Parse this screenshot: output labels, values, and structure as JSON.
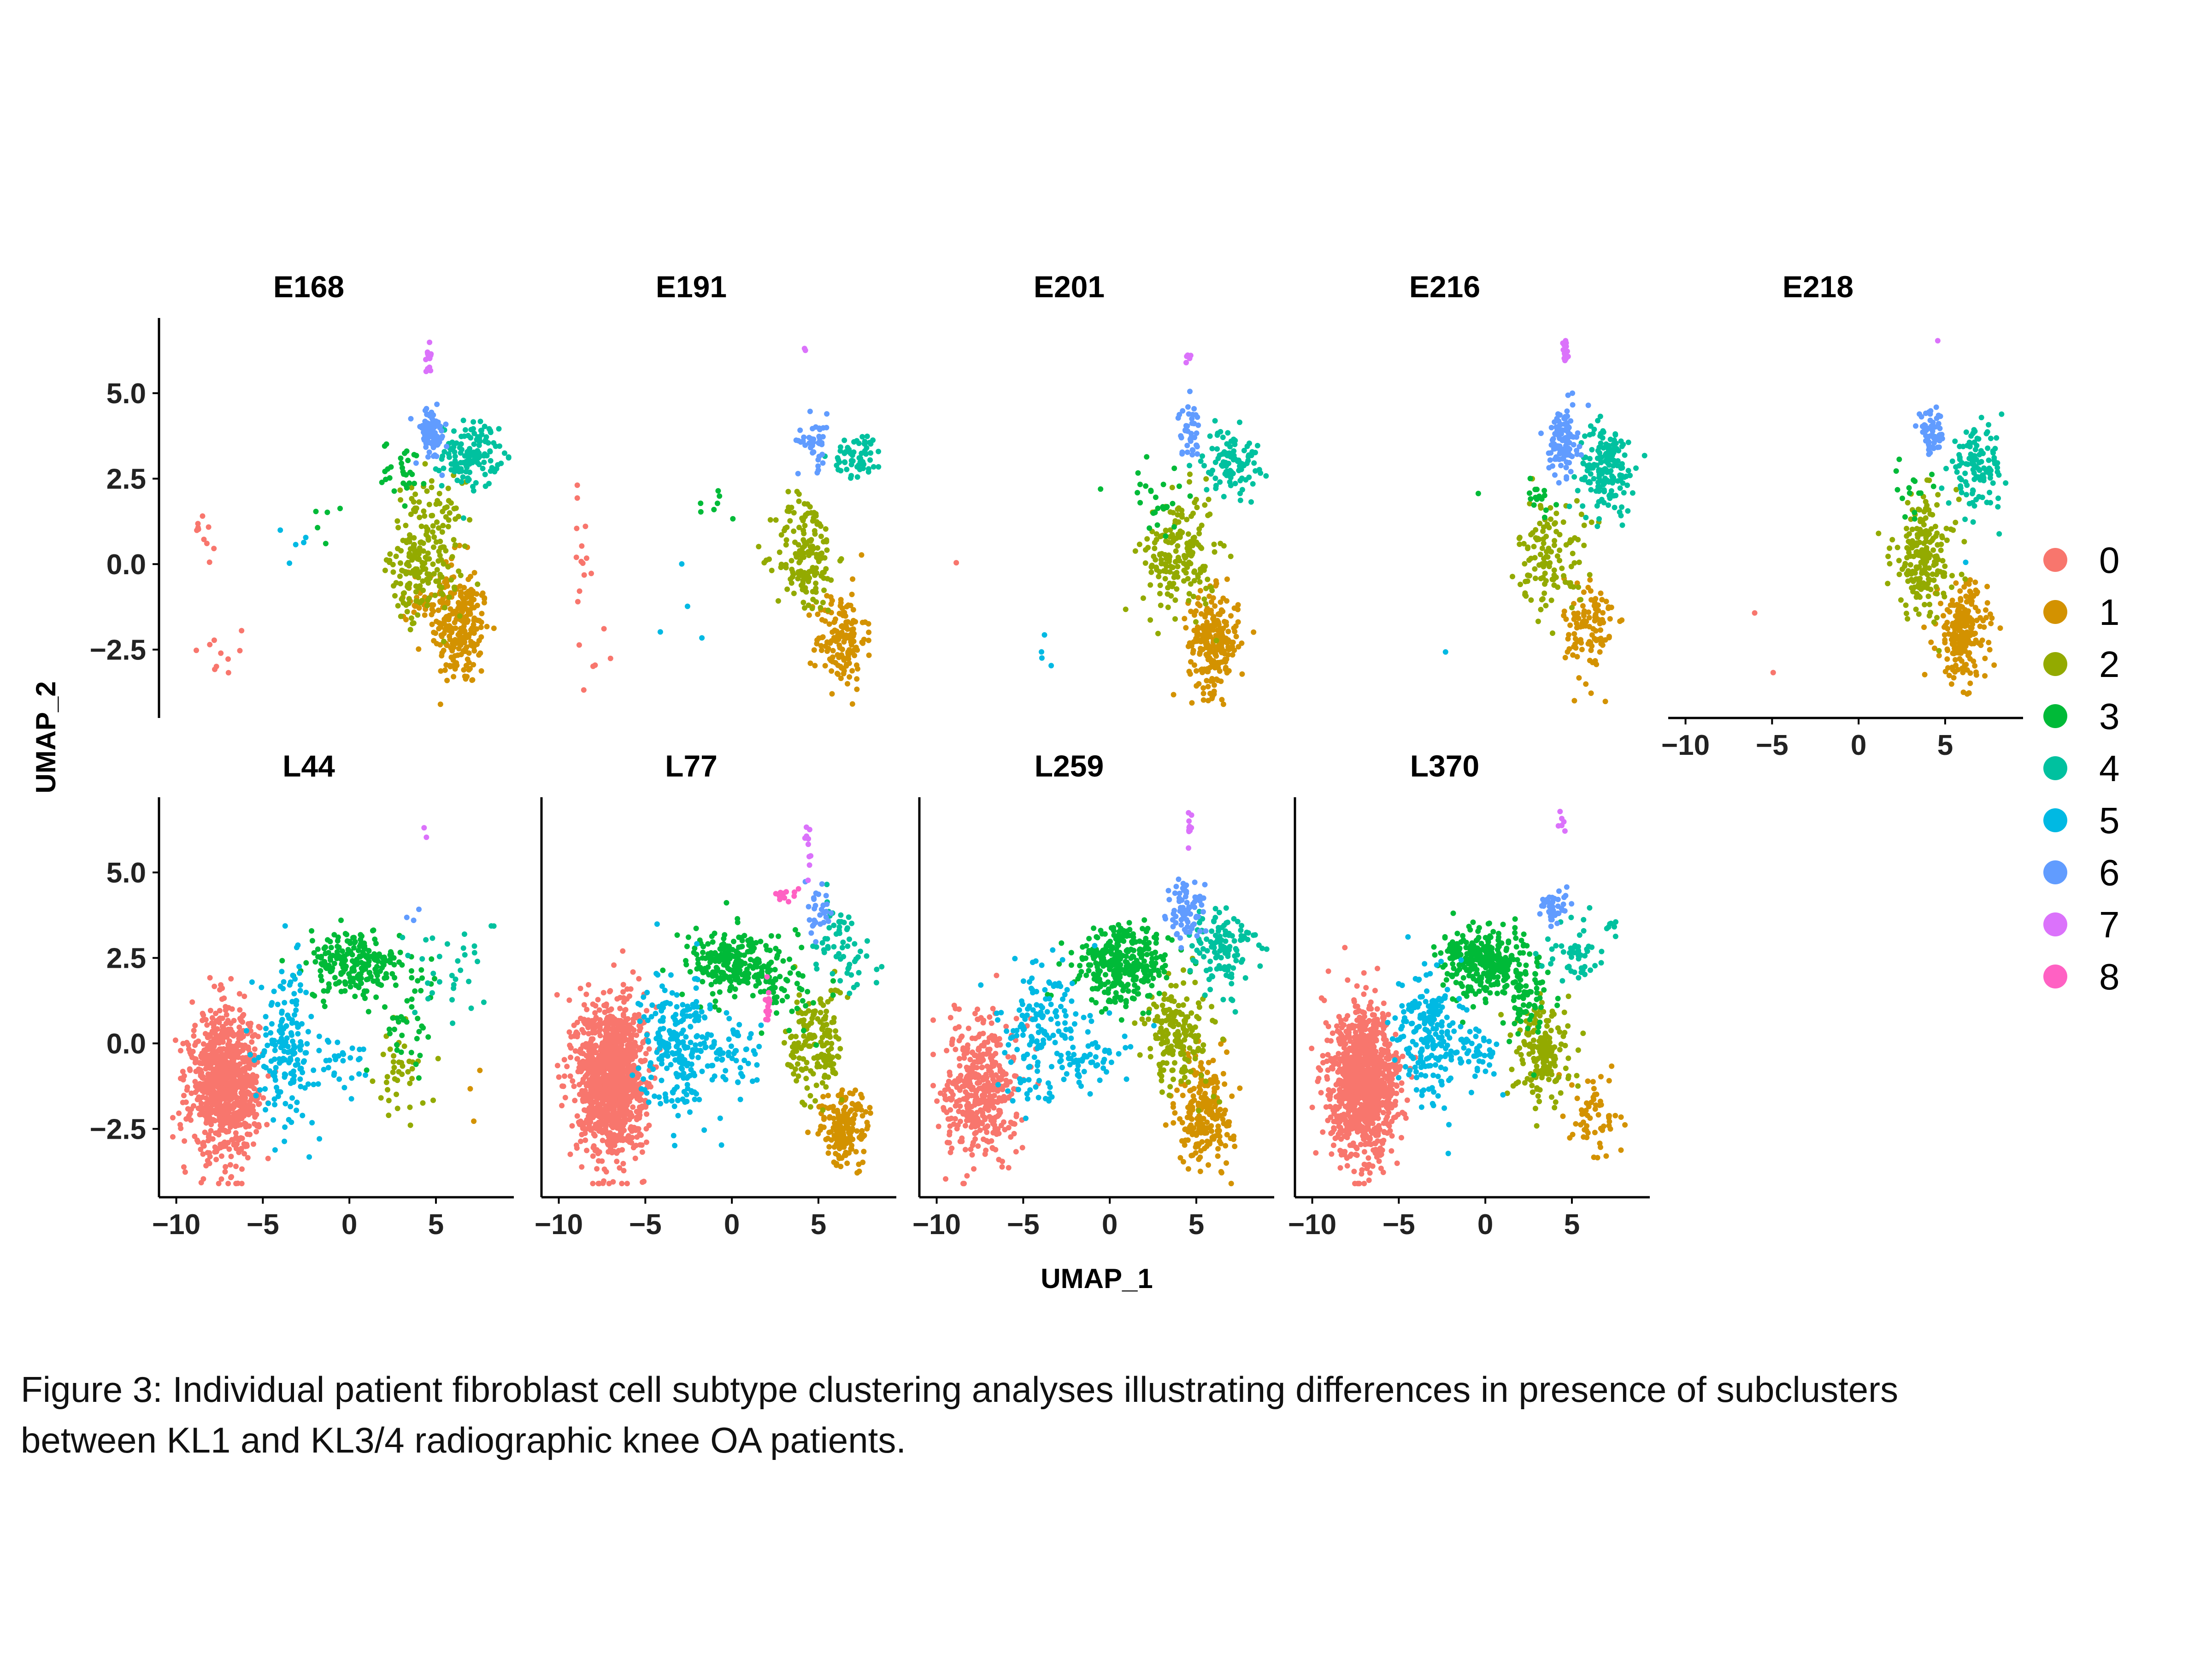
{
  "chart_data": {
    "type": "scatter",
    "xlabel": "UMAP_1",
    "ylabel": "UMAP_2",
    "xlim": [
      -11,
      9.5
    ],
    "ylim": [
      -4.5,
      7.2
    ],
    "xticks": [
      "-10",
      "-5",
      "0",
      "5"
    ],
    "yticks": [
      "5.0",
      "2.5",
      "0.0",
      "-2.5"
    ],
    "legend_position": "right",
    "legend": [
      {
        "label": "0",
        "color": "#F8766D"
      },
      {
        "label": "1",
        "color": "#D39200"
      },
      {
        "label": "2",
        "color": "#93AA00"
      },
      {
        "label": "3",
        "color": "#00BA38"
      },
      {
        "label": "4",
        "color": "#00C19F"
      },
      {
        "label": "5",
        "color": "#00B9E3"
      },
      {
        "label": "6",
        "color": "#619CFF"
      },
      {
        "label": "7",
        "color": "#DB72FB"
      },
      {
        "label": "8",
        "color": "#FF61C3"
      }
    ],
    "panels": [
      {
        "title": "E168",
        "clusters": {
          "0": [
            [
              -8.8,
              1.2,
              6,
              0.3,
              0.2
            ],
            [
              -7.5,
              -2.8,
              10,
              1.2,
              0.7
            ],
            [
              -8.2,
              0.6,
              4,
              0.5,
              0.4
            ]
          ],
          "1": [
            [
              6.5,
              -2.0,
              180,
              1.0,
              1.0
            ],
            [
              5.5,
              -1.0,
              90,
              1.2,
              0.8
            ]
          ],
          "2": [
            [
              4.5,
              0.5,
              160,
              1.3,
              1.2
            ],
            [
              3.8,
              -0.5,
              60,
              1.0,
              0.8
            ]
          ],
          "3": [
            [
              3.2,
              2.8,
              30,
              0.8,
              0.5
            ],
            [
              -1.5,
              1.2,
              5,
              0.4,
              0.4
            ]
          ],
          "4": [
            [
              7.0,
              3.2,
              130,
              1.0,
              0.6
            ]
          ],
          "5": [
            [
              -3.5,
              0.5,
              5,
              1.2,
              0.5
            ]
          ],
          "6": [
            [
              4.7,
              3.8,
              70,
              0.6,
              0.5
            ]
          ],
          "7": [
            [
              4.6,
              6.1,
              16,
              0.1,
              0.3
            ]
          ]
        }
      },
      {
        "title": "E191",
        "clusters": {
          "0": [
            [
              -8.6,
              0.0,
              14,
              0.4,
              1.2
            ],
            [
              -7.8,
              -2.8,
              5,
              0.6,
              0.5
            ]
          ],
          "1": [
            [
              6.3,
              -2.2,
              150,
              0.9,
              0.9
            ]
          ],
          "2": [
            [
              4.3,
              0.3,
              160,
              1.1,
              1.1
            ]
          ],
          "3": [
            [
              -0.8,
              1.5,
              7,
              0.8,
              0.5
            ]
          ],
          "4": [
            [
              7.3,
              3.2,
              60,
              0.9,
              0.4
            ]
          ],
          "5": [
            [
              -2.5,
              -1.5,
              4,
              1.0,
              1.2
            ]
          ],
          "6": [
            [
              4.8,
              3.6,
              40,
              0.6,
              0.5
            ]
          ],
          "7": [
            [
              4.2,
              6.3,
              2,
              0.1,
              0.1
            ]
          ]
        }
      },
      {
        "title": "E201",
        "clusters": {
          "0": [
            [
              -8.8,
              0.2,
              1,
              0.1,
              0.1
            ]
          ],
          "1": [
            [
              6.0,
              -2.3,
              240,
              0.9,
              0.9
            ]
          ],
          "2": [
            [
              4.0,
              0.3,
              190,
              1.3,
              1.1
            ]
          ],
          "3": [
            [
              2.8,
              2.0,
              25,
              0.9,
              0.6
            ],
            [
              -0.5,
              2.1,
              1,
              0.1,
              0.1
            ]
          ],
          "4": [
            [
              7.0,
              3.0,
              100,
              1.0,
              0.6
            ]
          ],
          "5": [
            [
              -3.8,
              -2.5,
              4,
              0.3,
              0.4
            ]
          ],
          "6": [
            [
              4.6,
              3.9,
              40,
              0.4,
              0.5
            ]
          ],
          "7": [
            [
              4.5,
              6.2,
              5,
              0.1,
              0.2
            ]
          ]
        }
      },
      {
        "title": "E216",
        "clusters": {
          "1": [
            [
              6.0,
              -1.9,
              110,
              0.9,
              1.0
            ]
          ],
          "2": [
            [
              3.8,
              0.3,
              120,
              1.2,
              1.0
            ]
          ],
          "3": [
            [
              3.0,
              2.0,
              15,
              0.7,
              0.5
            ],
            [
              -0.5,
              2.1,
              1,
              0.1,
              0.1
            ]
          ],
          "4": [
            [
              7.0,
              2.8,
              170,
              1.0,
              0.8
            ]
          ],
          "5": [
            [
              -2.2,
              -2.6,
              1,
              0.1,
              0.1
            ]
          ],
          "6": [
            [
              4.5,
              3.6,
              120,
              0.5,
              0.6
            ]
          ],
          "7": [
            [
              4.6,
              6.1,
              20,
              0.1,
              0.3
            ]
          ]
        }
      },
      {
        "title": "E218",
        "clusters": {
          "0": [
            [
              -6.0,
              -1.5,
              1,
              0.1,
              0.1
            ],
            [
              -5.0,
              -3.1,
              1,
              0.1,
              0.1
            ]
          ],
          "1": [
            [
              6.0,
              -2.0,
              220,
              0.9,
              0.9
            ]
          ],
          "2": [
            [
              3.8,
              0.2,
              200,
              1.2,
              1.1
            ]
          ],
          "3": [
            [
              3.0,
              2.2,
              15,
              0.7,
              0.5
            ]
          ],
          "4": [
            [
              6.8,
              2.8,
              120,
              1.0,
              0.7
            ]
          ],
          "5": [
            [
              6.3,
              0.1,
              1,
              0.1,
              0.1
            ]
          ],
          "6": [
            [
              4.2,
              3.8,
              55,
              0.5,
              0.4
            ]
          ],
          "7": [
            [
              4.5,
              6.6,
              1,
              0.1,
              0.1
            ]
          ]
        }
      },
      {
        "title": "L44",
        "clusters": {
          "0": [
            [
              -7.2,
              -1.2,
              900,
              1.2,
              1.3
            ]
          ],
          "1": [
            [
              7.2,
              -1.7,
              3,
              0.6,
              0.6
            ]
          ],
          "2": [
            [
              3.0,
              -0.8,
              40,
              0.9,
              0.8
            ]
          ],
          "3": [
            [
              0.3,
              2.3,
              220,
              1.7,
              0.6
            ],
            [
              3.5,
              0.8,
              40,
              1.2,
              1.0
            ]
          ],
          "4": [
            [
              5.5,
              2.2,
              30,
              1.5,
              0.8
            ],
            [
              8.3,
              3.4,
              2,
              0.1,
              0.1
            ]
          ],
          "5": [
            [
              -3.6,
              0.0,
              170,
              1.0,
              1.4
            ],
            [
              -0.5,
              -0.5,
              30,
              1.2,
              0.5
            ]
          ],
          "6": [
            [
              3.5,
              3.8,
              3,
              0.3,
              0.1
            ]
          ],
          "7": [
            [
              4.3,
              6.1,
              2,
              0.1,
              0.1
            ]
          ]
        }
      },
      {
        "title": "L77",
        "clusters": {
          "0": [
            [
              -7.0,
              -1.0,
              1200,
              1.2,
              1.4
            ]
          ],
          "1": [
            [
              6.5,
              -2.5,
              170,
              0.9,
              0.7
            ]
          ],
          "2": [
            [
              4.8,
              0.0,
              160,
              1.0,
              1.1
            ]
          ],
          "3": [
            [
              0.3,
              2.3,
              240,
              1.8,
              0.6
            ],
            [
              3.3,
              1.5,
              40,
              1.0,
              0.8
            ]
          ],
          "4": [
            [
              6.3,
              2.8,
              60,
              1.2,
              0.8
            ]
          ],
          "5": [
            [
              -3.2,
              0.0,
              220,
              1.2,
              1.3
            ],
            [
              0.0,
              -0.4,
              60,
              1.3,
              0.6
            ]
          ],
          "6": [
            [
              5.0,
              3.8,
              30,
              0.6,
              0.5
            ]
          ],
          "7": [
            [
              4.4,
              5.7,
              10,
              0.1,
              0.5
            ]
          ],
          "8": [
            [
              3.2,
              4.3,
              14,
              0.5,
              0.1
            ],
            [
              2.1,
              1.0,
              14,
              0.1,
              0.4
            ]
          ]
        }
      },
      {
        "title": "L259",
        "clusters": {
          "0": [
            [
              -7.5,
              -1.3,
              420,
              1.3,
              1.3
            ]
          ],
          "1": [
            [
              5.5,
              -2.0,
              220,
              1.0,
              1.0
            ]
          ],
          "2": [
            [
              4.0,
              0.3,
              180,
              1.2,
              1.0
            ]
          ],
          "3": [
            [
              0.8,
              2.3,
              320,
              1.7,
              0.7
            ]
          ],
          "4": [
            [
              6.5,
              2.8,
              120,
              1.2,
              0.8
            ]
          ],
          "5": [
            [
              -4.2,
              0.3,
              160,
              1.5,
              1.3
            ],
            [
              -0.8,
              -0.3,
              50,
              1.3,
              0.6
            ]
          ],
          "6": [
            [
              4.4,
              3.8,
              80,
              0.7,
              0.6
            ]
          ],
          "7": [
            [
              4.6,
              6.3,
              12,
              0.1,
              0.3
            ]
          ]
        }
      },
      {
        "title": "L370",
        "clusters": {
          "0": [
            [
              -7.0,
              -1.2,
              1100,
              1.2,
              1.3
            ]
          ],
          "1": [
            [
              6.3,
              -2.2,
              60,
              0.9,
              0.8
            ]
          ],
          "2": [
            [
              3.3,
              -0.2,
              170,
              1.0,
              0.9
            ]
          ],
          "3": [
            [
              0.0,
              2.4,
              320,
              1.5,
              0.6
            ],
            [
              2.5,
              1.3,
              60,
              0.9,
              0.7
            ]
          ],
          "4": [
            [
              5.3,
              2.6,
              50,
              1.0,
              0.6
            ],
            [
              7.3,
              3.4,
              6,
              0.3,
              0.2
            ]
          ],
          "5": [
            [
              -3.3,
              0.3,
              200,
              1.1,
              1.2
            ],
            [
              -0.5,
              -0.3,
              50,
              1.2,
              0.5
            ]
          ],
          "6": [
            [
              4.0,
              4.0,
              40,
              0.5,
              0.4
            ]
          ],
          "7": [
            [
              4.4,
              6.4,
              6,
              0.1,
              0.2
            ]
          ]
        }
      }
    ]
  },
  "caption": {
    "line1": "Figure 3: Individual patient fibroblast cell subtype clustering analyses illustrating differences in presence of subclusters",
    "line2": "between KL1 and KL3/4 radiographic knee OA patients."
  }
}
